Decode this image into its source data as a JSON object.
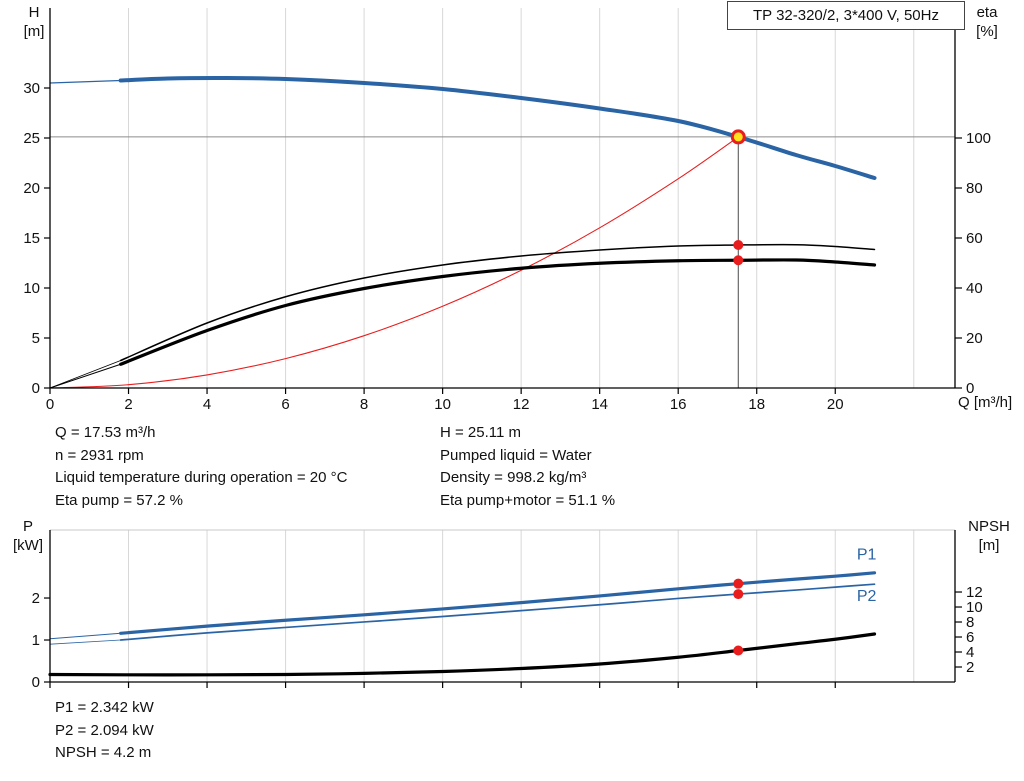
{
  "title_box": {
    "label": "TP 32-320/2, 3*400 V, 50Hz"
  },
  "colors": {
    "blue": "#2a64a5",
    "black": "#000000",
    "red": "#e81e1e",
    "yellow": "#ffe11b",
    "grid": "#d8d8d8",
    "marker_gray": "#8c8c8c",
    "marker_dark": "#4a4a4a"
  },
  "info_panel": {
    "left": [
      "Q = 17.53 m³/h",
      "n = 2931 rpm",
      "Liquid temperature during operation = 20 °C",
      "Eta pump = 57.2 %"
    ],
    "right": [
      "H = 25.11 m",
      "Pumped liquid = Water",
      "Density = 998.2 kg/m³",
      "Eta pump+motor = 51.1 %"
    ]
  },
  "results_panel": [
    "P1 = 2.342 kW",
    "P2 = 2.094 kW",
    "NPSH = 4.2 m"
  ],
  "chart_data": [
    {
      "type": "line",
      "title": "TP 32-320/2, 3*400 V, 50Hz",
      "x_axis": {
        "label": "Q [m³/h]",
        "ticks": [
          0,
          2,
          4,
          6,
          8,
          10,
          12,
          14,
          16,
          18,
          20
        ],
        "grid_ticks": [
          2,
          4,
          6,
          8,
          10,
          12,
          14,
          16,
          18,
          20,
          22
        ],
        "max": 23.05,
        "labels": true
      },
      "y_left": {
        "label_1": "H",
        "label_2": "[m]",
        "ticks": [
          0,
          5,
          10,
          15,
          20,
          25,
          30
        ],
        "max": 38
      },
      "y_right": {
        "label_1": "eta",
        "label_2": "[%]",
        "ticks": [
          0,
          20,
          40,
          60,
          80,
          100
        ],
        "max": 152
      },
      "duty_point": {
        "q": 17.53,
        "h": 25.11,
        "eta_pump": 57.2,
        "eta_pump_motor": 51.1
      },
      "series": [
        {
          "name": "h-curve-lead",
          "axis": "left",
          "color": "blue",
          "width": 1.2,
          "points": [
            [
              0,
              30.5
            ],
            [
              1.8,
              30.75
            ]
          ]
        },
        {
          "name": "h-curve",
          "axis": "left",
          "color": "blue",
          "width": 4,
          "points": [
            [
              1.8,
              30.75
            ],
            [
              3,
              30.95
            ],
            [
              4.5,
              31.0
            ],
            [
              6,
              30.9
            ],
            [
              8,
              30.5
            ],
            [
              10,
              29.9
            ],
            [
              12,
              29.0
            ],
            [
              14,
              27.95
            ],
            [
              16,
              26.7
            ],
            [
              17.53,
              25.11
            ],
            [
              19,
              23.3
            ],
            [
              20,
              22.2
            ],
            [
              21,
              21.0
            ]
          ]
        },
        {
          "name": "system-curve",
          "axis": "left",
          "color": "red",
          "width": 1.1,
          "points": [
            [
              0,
              0
            ],
            [
              2,
              0.33
            ],
            [
              4,
              1.31
            ],
            [
              6,
              2.94
            ],
            [
              8,
              5.23
            ],
            [
              10,
              8.17
            ],
            [
              12,
              11.77
            ],
            [
              14,
              16.02
            ],
            [
              16,
              20.92
            ],
            [
              17.53,
              25.11
            ]
          ]
        },
        {
          "name": "eta-pump-lead",
          "axis": "right",
          "color": "black",
          "width": 0.8,
          "points": [
            [
              0,
              0
            ],
            [
              1.8,
              11
            ]
          ]
        },
        {
          "name": "eta-pump-curve",
          "axis": "right",
          "color": "black",
          "width": 1.5,
          "points": [
            [
              1.8,
              11
            ],
            [
              4,
              26
            ],
            [
              6,
              36.5
            ],
            [
              8,
              44
            ],
            [
              10,
              49.2
            ],
            [
              12,
              52.8
            ],
            [
              14,
              55.2
            ],
            [
              16,
              56.8
            ],
            [
              17.53,
              57.2
            ],
            [
              19,
              57.3
            ],
            [
              20,
              56.6
            ],
            [
              21,
              55.4
            ]
          ]
        },
        {
          "name": "eta-pump-motor-lead",
          "axis": "right",
          "color": "black",
          "width": 1,
          "points": [
            [
              0,
              0
            ],
            [
              1.8,
              9.5
            ]
          ]
        },
        {
          "name": "eta-pump-motor-curve",
          "axis": "right",
          "color": "black",
          "width": 3.2,
          "points": [
            [
              1.8,
              9.5
            ],
            [
              4,
              23
            ],
            [
              6,
              33
            ],
            [
              8,
              39.8
            ],
            [
              10,
              44.6
            ],
            [
              12,
              47.9
            ],
            [
              14,
              49.9
            ],
            [
              16,
              50.9
            ],
            [
              17.53,
              51.1
            ],
            [
              19,
              51.2
            ],
            [
              20,
              50.4
            ],
            [
              21,
              49.2
            ]
          ]
        }
      ],
      "marker_lines": [
        {
          "name": "duty-horizontal-line",
          "orient": "h",
          "axis": "left",
          "value": 25.11,
          "color": "marker_gray",
          "width": 1
        },
        {
          "name": "duty-vertical-line",
          "orient": "v",
          "q": 17.53,
          "axis": "left",
          "to_value": 25.11,
          "color": "marker_dark",
          "width": 1
        }
      ],
      "markers": [
        {
          "name": "duty-point",
          "q": 17.53,
          "value": 25.11,
          "axis": "left",
          "r": 6,
          "fill": "yellow",
          "stroke": "red",
          "stroke_width": 3
        },
        {
          "name": "eta-pump-point",
          "q": 17.53,
          "value": 57.2,
          "axis": "right",
          "r": 5,
          "fill": "red"
        },
        {
          "name": "eta-pump-motor-point",
          "q": 17.53,
          "value": 51.1,
          "axis": "right",
          "r": 5,
          "fill": "red"
        }
      ],
      "series_labels": []
    },
    {
      "type": "line",
      "x_axis": {
        "label": "",
        "ticks": [
          0,
          2,
          4,
          6,
          8,
          10,
          12,
          14,
          16,
          18,
          20
        ],
        "grid_ticks": [
          2,
          4,
          6,
          8,
          10,
          12,
          14,
          16,
          18,
          20,
          22
        ],
        "max": 23.05,
        "labels": false
      },
      "y_left": {
        "label_1": "P",
        "label_2": "[kW]",
        "ticks": [
          0,
          1,
          2
        ],
        "max": 3.62
      },
      "y_right": {
        "label_1": "NPSH",
        "label_2": "[m]",
        "ticks": [
          2,
          4,
          6,
          8,
          10,
          12
        ],
        "max": 20.27
      },
      "duty_point": {
        "q": 17.53,
        "p1": 2.342,
        "p2": 2.094,
        "npsh": 4.2
      },
      "series": [
        {
          "name": "p1-curve-lead",
          "axis": "left",
          "color": "blue",
          "width": 1,
          "points": [
            [
              0,
              1.03
            ],
            [
              1.8,
              1.16
            ]
          ]
        },
        {
          "name": "p1-curve",
          "axis": "left",
          "color": "blue",
          "width": 3.2,
          "points": [
            [
              1.8,
              1.16
            ],
            [
              4,
              1.33
            ],
            [
              6,
              1.47
            ],
            [
              8,
              1.6
            ],
            [
              10,
              1.74
            ],
            [
              12,
              1.89
            ],
            [
              14,
              2.05
            ],
            [
              16,
              2.22
            ],
            [
              17.53,
              2.342
            ],
            [
              19,
              2.45
            ],
            [
              20,
              2.52
            ],
            [
              21,
              2.6
            ]
          ]
        },
        {
          "name": "p2-curve-lead",
          "axis": "left",
          "color": "blue",
          "width": 0.8,
          "points": [
            [
              0,
              0.9
            ],
            [
              1.8,
              1.0
            ]
          ]
        },
        {
          "name": "p2-curve",
          "axis": "left",
          "color": "blue",
          "width": 1.7,
          "points": [
            [
              1.8,
              1.0
            ],
            [
              4,
              1.17
            ],
            [
              6,
              1.3
            ],
            [
              8,
              1.43
            ],
            [
              10,
              1.56
            ],
            [
              12,
              1.7
            ],
            [
              14,
              1.84
            ],
            [
              16,
              1.99
            ],
            [
              17.53,
              2.094
            ],
            [
              19,
              2.19
            ],
            [
              20,
              2.26
            ],
            [
              21,
              2.33
            ]
          ]
        },
        {
          "name": "npsh-curve",
          "axis": "right",
          "color": "black",
          "width": 3.2,
          "points": [
            [
              0,
              1.0
            ],
            [
              3,
              0.95
            ],
            [
              6,
              1.0
            ],
            [
              8,
              1.15
            ],
            [
              10,
              1.4
            ],
            [
              12,
              1.8
            ],
            [
              14,
              2.4
            ],
            [
              16,
              3.3
            ],
            [
              17.53,
              4.2
            ],
            [
              19,
              5.1
            ],
            [
              20,
              5.7
            ],
            [
              21,
              6.4
            ]
          ]
        }
      ],
      "marker_lines": [],
      "markers": [
        {
          "name": "p1-point",
          "q": 17.53,
          "value": 2.342,
          "axis": "left",
          "r": 5,
          "fill": "red"
        },
        {
          "name": "p2-point",
          "q": 17.53,
          "value": 2.094,
          "axis": "left",
          "r": 5,
          "fill": "red"
        },
        {
          "name": "npsh-point",
          "q": 17.53,
          "value": 4.2,
          "axis": "right",
          "r": 5,
          "fill": "red"
        }
      ],
      "series_labels": [
        {
          "text": "P1",
          "q": 20.55,
          "value": 2.92,
          "axis": "left",
          "color": "blue"
        },
        {
          "text": "P2",
          "q": 20.55,
          "value": 1.93,
          "axis": "left",
          "color": "blue"
        }
      ]
    }
  ]
}
